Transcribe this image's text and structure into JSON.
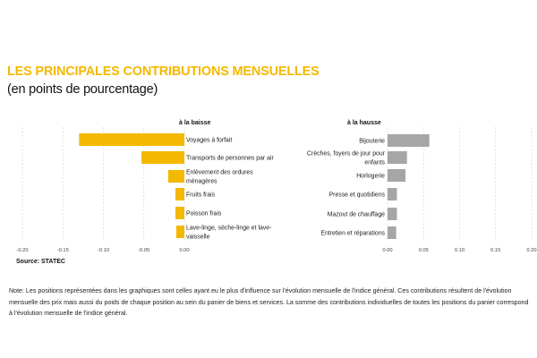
{
  "title": "LES PRINCIPALES CONTRIBUTIONS MENSUELLES",
  "subtitle": "(en points de pourcentage)",
  "source": "Source: STATEC",
  "note": "Note: Les positions représentées dans les graphiques sont celles ayant eu le plus d'influence sur l'évolution mensuelle de l'indice général. Ces contributions résultent de l'évolution mensuelle des prix mais aussi du poids de chaque position au sein du panier de biens et services. La somme des contributions individuelles de toutes les positions du panier correspond à l'évolution mensuelle de l'indice général.",
  "colors": {
    "title": "#f5b800",
    "baisse": "#f5b800",
    "hausse": "#a6a6a6"
  },
  "chart_data": [
    {
      "type": "bar",
      "orientation": "horizontal",
      "title": "à la baisse",
      "categories": [
        [
          "Voyages à forfait"
        ],
        [
          "Transports de personnes par air"
        ],
        [
          "Enlèvement des ordures",
          "ménagères"
        ],
        [
          "Fruits frais"
        ],
        [
          "Poisson frais"
        ],
        [
          "Lave-linge, sèche-linge et lave-",
          "vaisselle"
        ]
      ],
      "values": [
        -0.13,
        -0.053,
        -0.02,
        -0.011,
        -0.011,
        -0.01
      ],
      "xlim": [
        -0.2,
        0.0
      ],
      "xticks": [
        -0.2,
        -0.15,
        -0.1,
        -0.05,
        0.0
      ],
      "xtick_labels": [
        "-0.20",
        "-0.15",
        "-0.10",
        "-0.05",
        "0.00"
      ],
      "grid": true
    },
    {
      "type": "bar",
      "orientation": "horizontal",
      "title": "à la hausse",
      "categories": [
        [
          "Bijouterie"
        ],
        [
          "Crèches, foyers de jour pour",
          "enfants"
        ],
        [
          "Horlogerie"
        ],
        [
          "Presse et quotidiens"
        ],
        [
          "Mazout de chauffage"
        ],
        [
          "Entretien et réparations"
        ]
      ],
      "values": [
        0.058,
        0.027,
        0.025,
        0.013,
        0.013,
        0.012
      ],
      "xlim": [
        0.0,
        0.2
      ],
      "xticks": [
        0.0,
        0.05,
        0.1,
        0.15,
        0.2
      ],
      "xtick_labels": [
        "0.00",
        "0.05",
        "0.10",
        "0.15",
        "0.20"
      ],
      "grid": true
    }
  ]
}
